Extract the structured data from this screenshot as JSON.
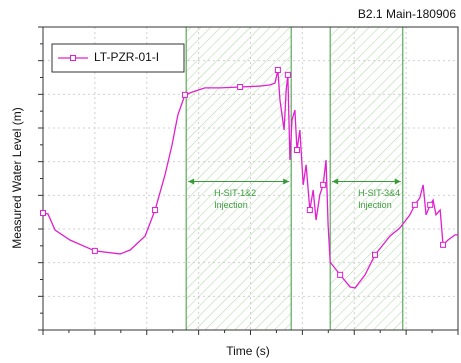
{
  "chart_data": {
    "type": "line",
    "title": "B2.1 Main-180906",
    "title_color": "#2e8b2e",
    "x_label": "Time (s)",
    "y_label": "Measured Water Level (m)",
    "xlim": [
      0,
      100
    ],
    "ylim": [
      0,
      100
    ],
    "grid": true,
    "legend": "upper left",
    "series": [
      {
        "name": "LT-PZR-01-I",
        "color": "#e020d0",
        "x": [
          0,
          1.2,
          2.9,
          6.5,
          12.5,
          18.6,
          21.0,
          24.6,
          27.0,
          29.4,
          31.1,
          32.5,
          34.2,
          35.9,
          39.0,
          42.7,
          47.5,
          52.3,
          54.7,
          55.9,
          56.6,
          57.1,
          58.1,
          58.6,
          59.0,
          59.5,
          60.0,
          60.7,
          61.2,
          61.9,
          62.7,
          63.4,
          64.3,
          65.1,
          65.8,
          66.7,
          67.5,
          68.2,
          68.7,
          69.2,
          71.6,
          74.0,
          75.2,
          77.6,
          80.0,
          83.6,
          86.0,
          88.4,
          89.6,
          90.8,
          91.6,
          92.3,
          93.3,
          94.0,
          94.7,
          95.7,
          96.4,
          97.6,
          99.3,
          100
        ],
        "values": [
          38.6,
          38.3,
          33.0,
          29.7,
          26.1,
          25.1,
          26.4,
          31.0,
          39.6,
          51.2,
          61.1,
          71.0,
          77.6,
          78.5,
          79.9,
          79.9,
          80.2,
          80.5,
          80.9,
          81.5,
          85.8,
          75.9,
          66.0,
          79.2,
          84.2,
          56.1,
          69.3,
          72.6,
          59.4,
          66.0,
          47.9,
          54.5,
          39.6,
          46.2,
          36.3,
          44.6,
          47.9,
          56.1,
          34.7,
          22.4,
          18.2,
          14.2,
          13.9,
          18.2,
          24.8,
          31.0,
          33.7,
          38.0,
          41.3,
          43.6,
          47.9,
          38.0,
          41.3,
          42.9,
          38.0,
          39.6,
          28.1,
          29.7,
          31.4,
          31.4
        ]
      }
    ],
    "regions": [
      {
        "x": [
          34.5,
          59.8
        ],
        "label": [
          "H-SIT-1&2",
          "Injection"
        ],
        "color": "#3a9a3a",
        "arrow_y": 49
      },
      {
        "x": [
          69.2,
          86.7
        ],
        "label": [
          "H-SIT-3&4",
          "Injection"
        ],
        "color": "#3a9a3a",
        "arrow_y": 49
      }
    ]
  }
}
